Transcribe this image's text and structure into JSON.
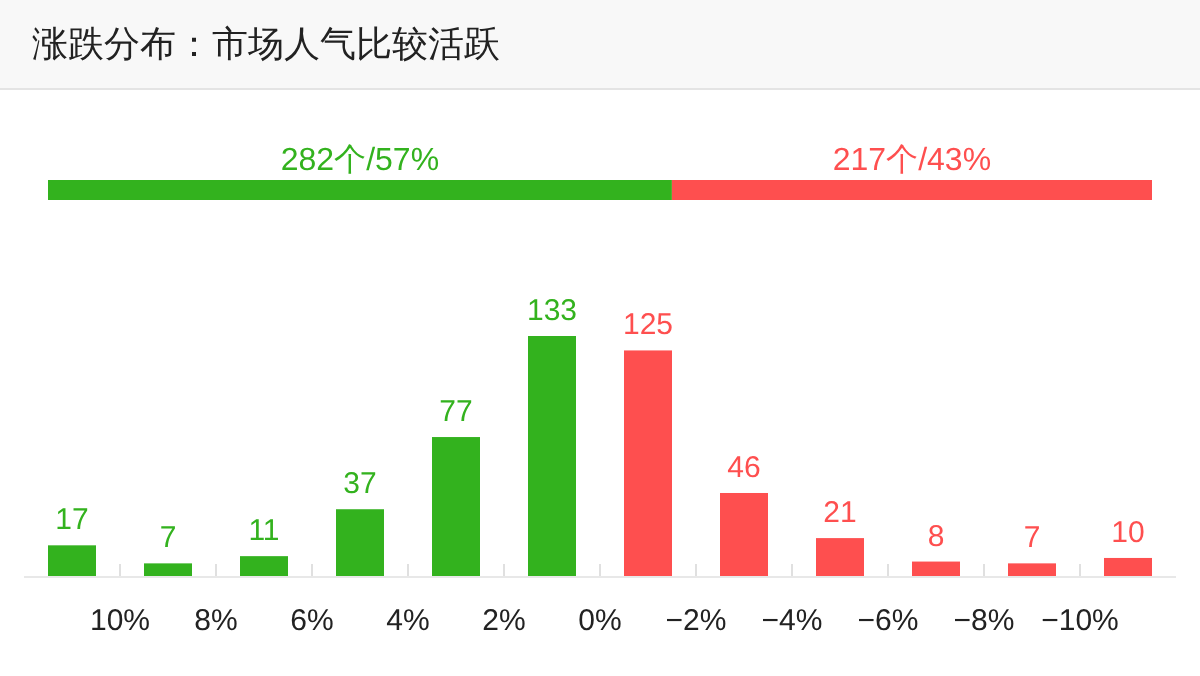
{
  "chart_data": [
    {
      "type": "bar",
      "title": "涨跌分布：市场人气比较活跃",
      "orientation": "horizontal",
      "stacked": true,
      "categories": [
        null
      ],
      "series": [
        {
          "color": "#33b21e",
          "values": [
            282
          ],
          "value_labels": [
            "282个/57%"
          ]
        },
        {
          "color": "#fe4f4f",
          "values": [
            217
          ],
          "value_labels": [
            "217个/43%"
          ]
        }
      ]
    },
    {
      "type": "bar",
      "categories": [
        null,
        null,
        null,
        null,
        null,
        null,
        null,
        null,
        null,
        null,
        null,
        null
      ],
      "values": [
        17,
        7,
        11,
        37,
        77,
        133,
        125,
        46,
        21,
        8,
        7,
        10
      ],
      "colors": [
        "#33b21e",
        "#33b21e",
        "#33b21e",
        "#33b21e",
        "#33b21e",
        "#33b21e",
        "#fe4f4f",
        "#fe4f4f",
        "#fe4f4f",
        "#fe4f4f",
        "#fe4f4f",
        "#fe4f4f"
      ],
      "annotations": [
        "10%",
        "8%",
        "6%",
        "4%",
        "2%",
        "0%",
        "−2%",
        "−4%",
        "−6%",
        "−8%",
        "−10%"
      ],
      "data_labels": true
    }
  ]
}
